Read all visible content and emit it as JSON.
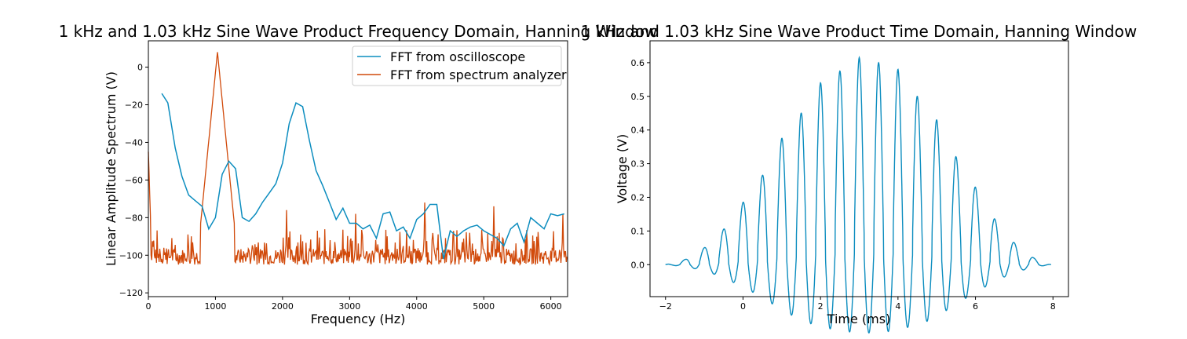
{
  "chart_data": [
    {
      "type": "line",
      "title": "1 kHz and 1.03 kHz Sine Wave Product Frequency Domain, Hanning Window",
      "xlabel": "Frequency (Hz)",
      "ylabel": "Linear Amplitude Spectrum (V)",
      "xlim": [
        0,
        6250
      ],
      "ylim": [
        -122,
        14
      ],
      "xticks": [
        "0",
        "1000",
        "2000",
        "3000",
        "4000",
        "5000",
        "6000"
      ],
      "yticks": [
        "0",
        "−20",
        "−40",
        "−60",
        "−80",
        "−100",
        "−120"
      ],
      "legend_position": "top-right",
      "grid": false,
      "series": [
        {
          "name": "FFT from oscilloscope",
          "color": "#0c8dbf",
          "x": [
            200,
            290,
            400,
            500,
            600,
            700,
            800,
            900,
            1000,
            1100,
            1200,
            1300,
            1400,
            1500,
            1600,
            1700,
            1800,
            1900,
            2000,
            2100,
            2200,
            2300,
            2400,
            2500,
            2600,
            2700,
            2800,
            2900,
            3000,
            3100,
            3200,
            3300,
            3400,
            3500,
            3600,
            3700,
            3800,
            3900,
            4000,
            4100,
            4200,
            4300,
            4400,
            4500,
            4600,
            4700,
            4800,
            4900,
            5000,
            5100,
            5200,
            5300,
            5400,
            5500,
            5600,
            5700,
            5800,
            5900,
            6000,
            6100,
            6200
          ],
          "y": [
            -14,
            -19,
            -43,
            -58,
            -68,
            -71,
            -74,
            -86,
            -80,
            -57,
            -50,
            -54,
            -80,
            -82,
            -78,
            -72,
            -67,
            -62,
            -51,
            -30,
            -19,
            -21,
            -39,
            -55,
            -63,
            -72,
            -81,
            -75,
            -83,
            -83,
            -86,
            -84,
            -91,
            -78,
            -77,
            -87,
            -85,
            -91,
            -81,
            -78,
            -73,
            -73,
            -102,
            -87,
            -90,
            -87,
            -85,
            -84,
            -87,
            -89,
            -91,
            -95,
            -86,
            -83,
            -93,
            -80,
            -83,
            -86,
            -78,
            -79,
            -78
          ]
        },
        {
          "name": "FFT from spectrum analyzer",
          "color": "#d14a0b",
          "peaks": [
            {
              "x": 0,
              "y": -45
            },
            {
              "x": 1030,
              "y": 8
            },
            {
              "x": 2060,
              "y": -76
            },
            {
              "x": 3090,
              "y": -78
            },
            {
              "x": 4120,
              "y": -72
            },
            {
              "x": 5150,
              "y": -74
            },
            {
              "x": 6180,
              "y": -78
            }
          ],
          "noise_floor": [
            -105,
            -86
          ]
        }
      ]
    },
    {
      "type": "line",
      "title": "1 kHz and 1.03 kHz Sine Wave Product Time Domain, Hanning Window",
      "xlabel": "Time (ms)",
      "ylabel": "Voltage (V)",
      "xlim": [
        -2.4,
        8.4
      ],
      "ylim": [
        -0.095,
        0.665
      ],
      "xticks": [
        "−2",
        "0",
        "2",
        "4",
        "6",
        "8"
      ],
      "yticks": [
        "0.0",
        "0.1",
        "0.2",
        "0.3",
        "0.4",
        "0.5",
        "0.6"
      ],
      "grid": false,
      "series": [
        {
          "color": "#0c8dbf",
          "t_start": -2,
          "t_end": 7.95,
          "period_ms": 0.5,
          "peak_envelope": [
            {
              "t": -1.5,
              "v": 0.015
            },
            {
              "t": -1.0,
              "v": 0.05
            },
            {
              "t": -0.5,
              "v": 0.105
            },
            {
              "t": 0.0,
              "v": 0.185
            },
            {
              "t": 0.5,
              "v": 0.265
            },
            {
              "t": 1.0,
              "v": 0.375
            },
            {
              "t": 1.5,
              "v": 0.45
            },
            {
              "t": 2.0,
              "v": 0.54
            },
            {
              "t": 2.5,
              "v": 0.575
            },
            {
              "t": 3.0,
              "v": 0.615
            },
            {
              "t": 3.5,
              "v": 0.6
            },
            {
              "t": 4.0,
              "v": 0.58
            },
            {
              "t": 4.5,
              "v": 0.5
            },
            {
              "t": 5.0,
              "v": 0.43
            },
            {
              "t": 5.5,
              "v": 0.32
            },
            {
              "t": 6.0,
              "v": 0.23
            },
            {
              "t": 6.5,
              "v": 0.135
            },
            {
              "t": 7.0,
              "v": 0.065
            },
            {
              "t": 7.5,
              "v": 0.02
            }
          ],
          "trough_min": -0.055
        }
      ]
    }
  ]
}
